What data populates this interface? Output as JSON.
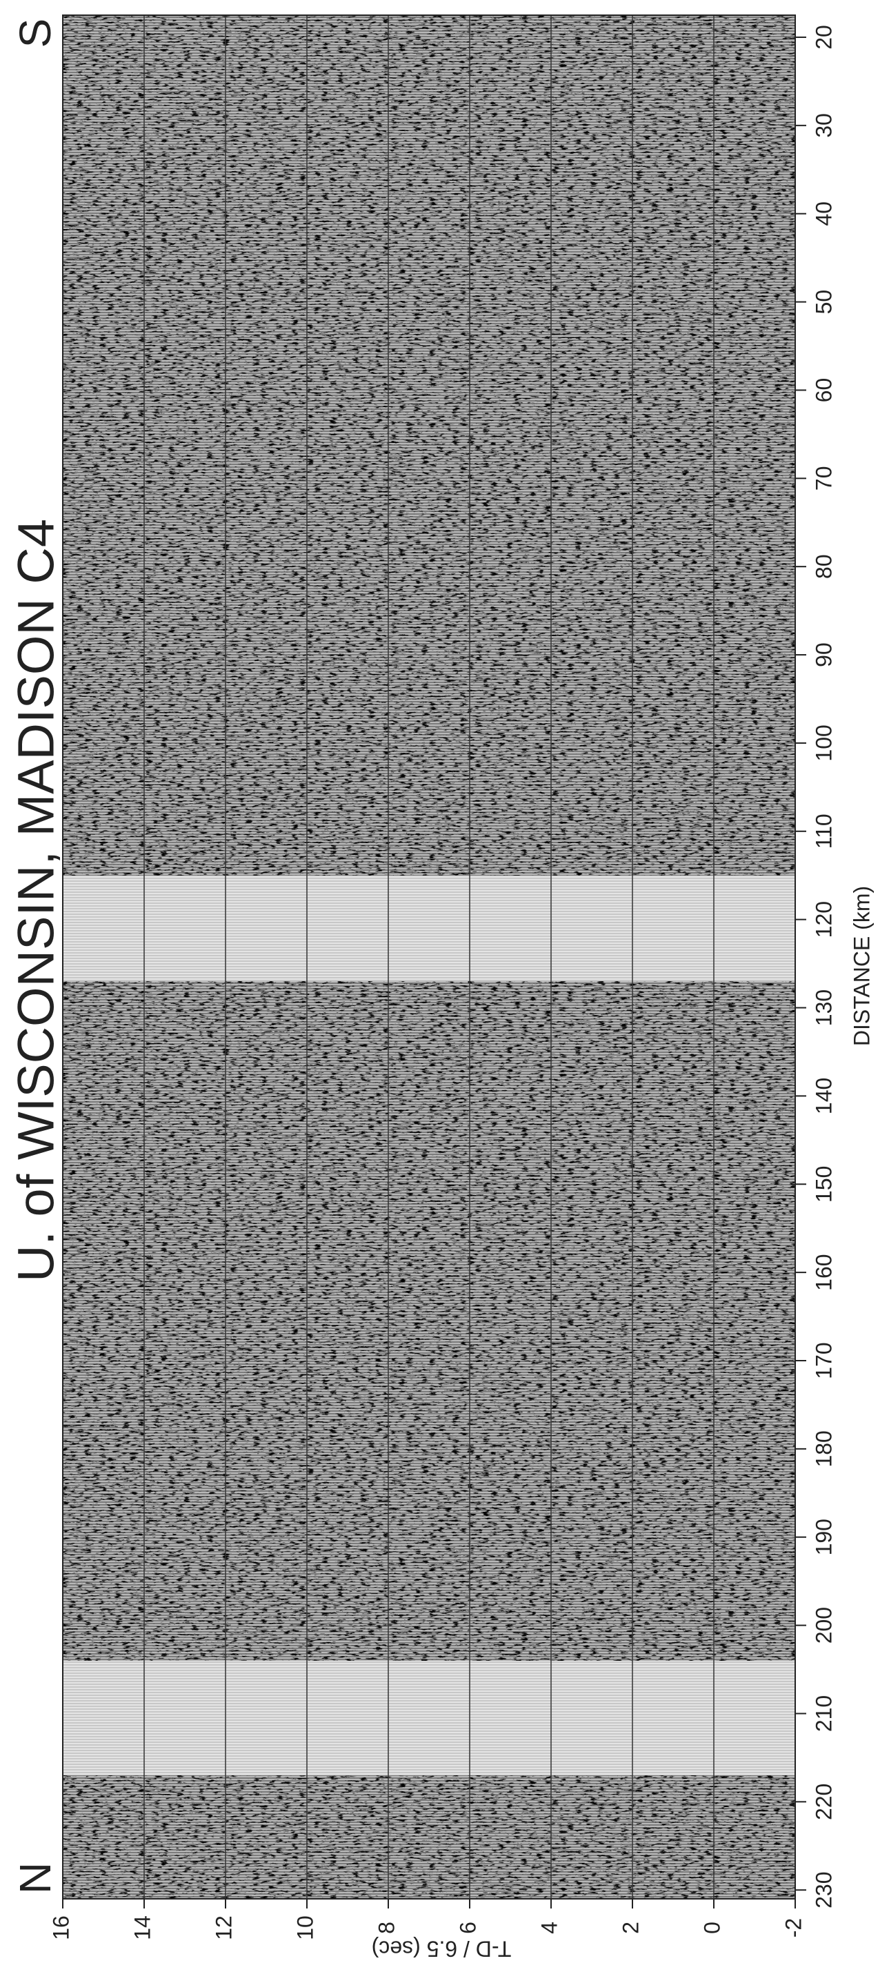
{
  "chart_data": {
    "type": "seismic",
    "title": "U. of WISCONSIN, MADISON C4",
    "xlabel": "DISTANCE (km)",
    "ylabel": "T-D / 6.5 (sec)",
    "start_label": "S",
    "end_label": "N",
    "xlim": [
      17.5,
      231
    ],
    "xticks": [
      20,
      30,
      40,
      50,
      60,
      70,
      80,
      90,
      100,
      110,
      120,
      130,
      140,
      150,
      160,
      170,
      180,
      190,
      200,
      210,
      220,
      230
    ],
    "ylim": [
      -2,
      16
    ],
    "yticks": [
      16,
      14,
      12,
      10,
      8,
      6,
      4,
      2,
      0,
      -2
    ],
    "grid": true,
    "color": "#333333"
  }
}
